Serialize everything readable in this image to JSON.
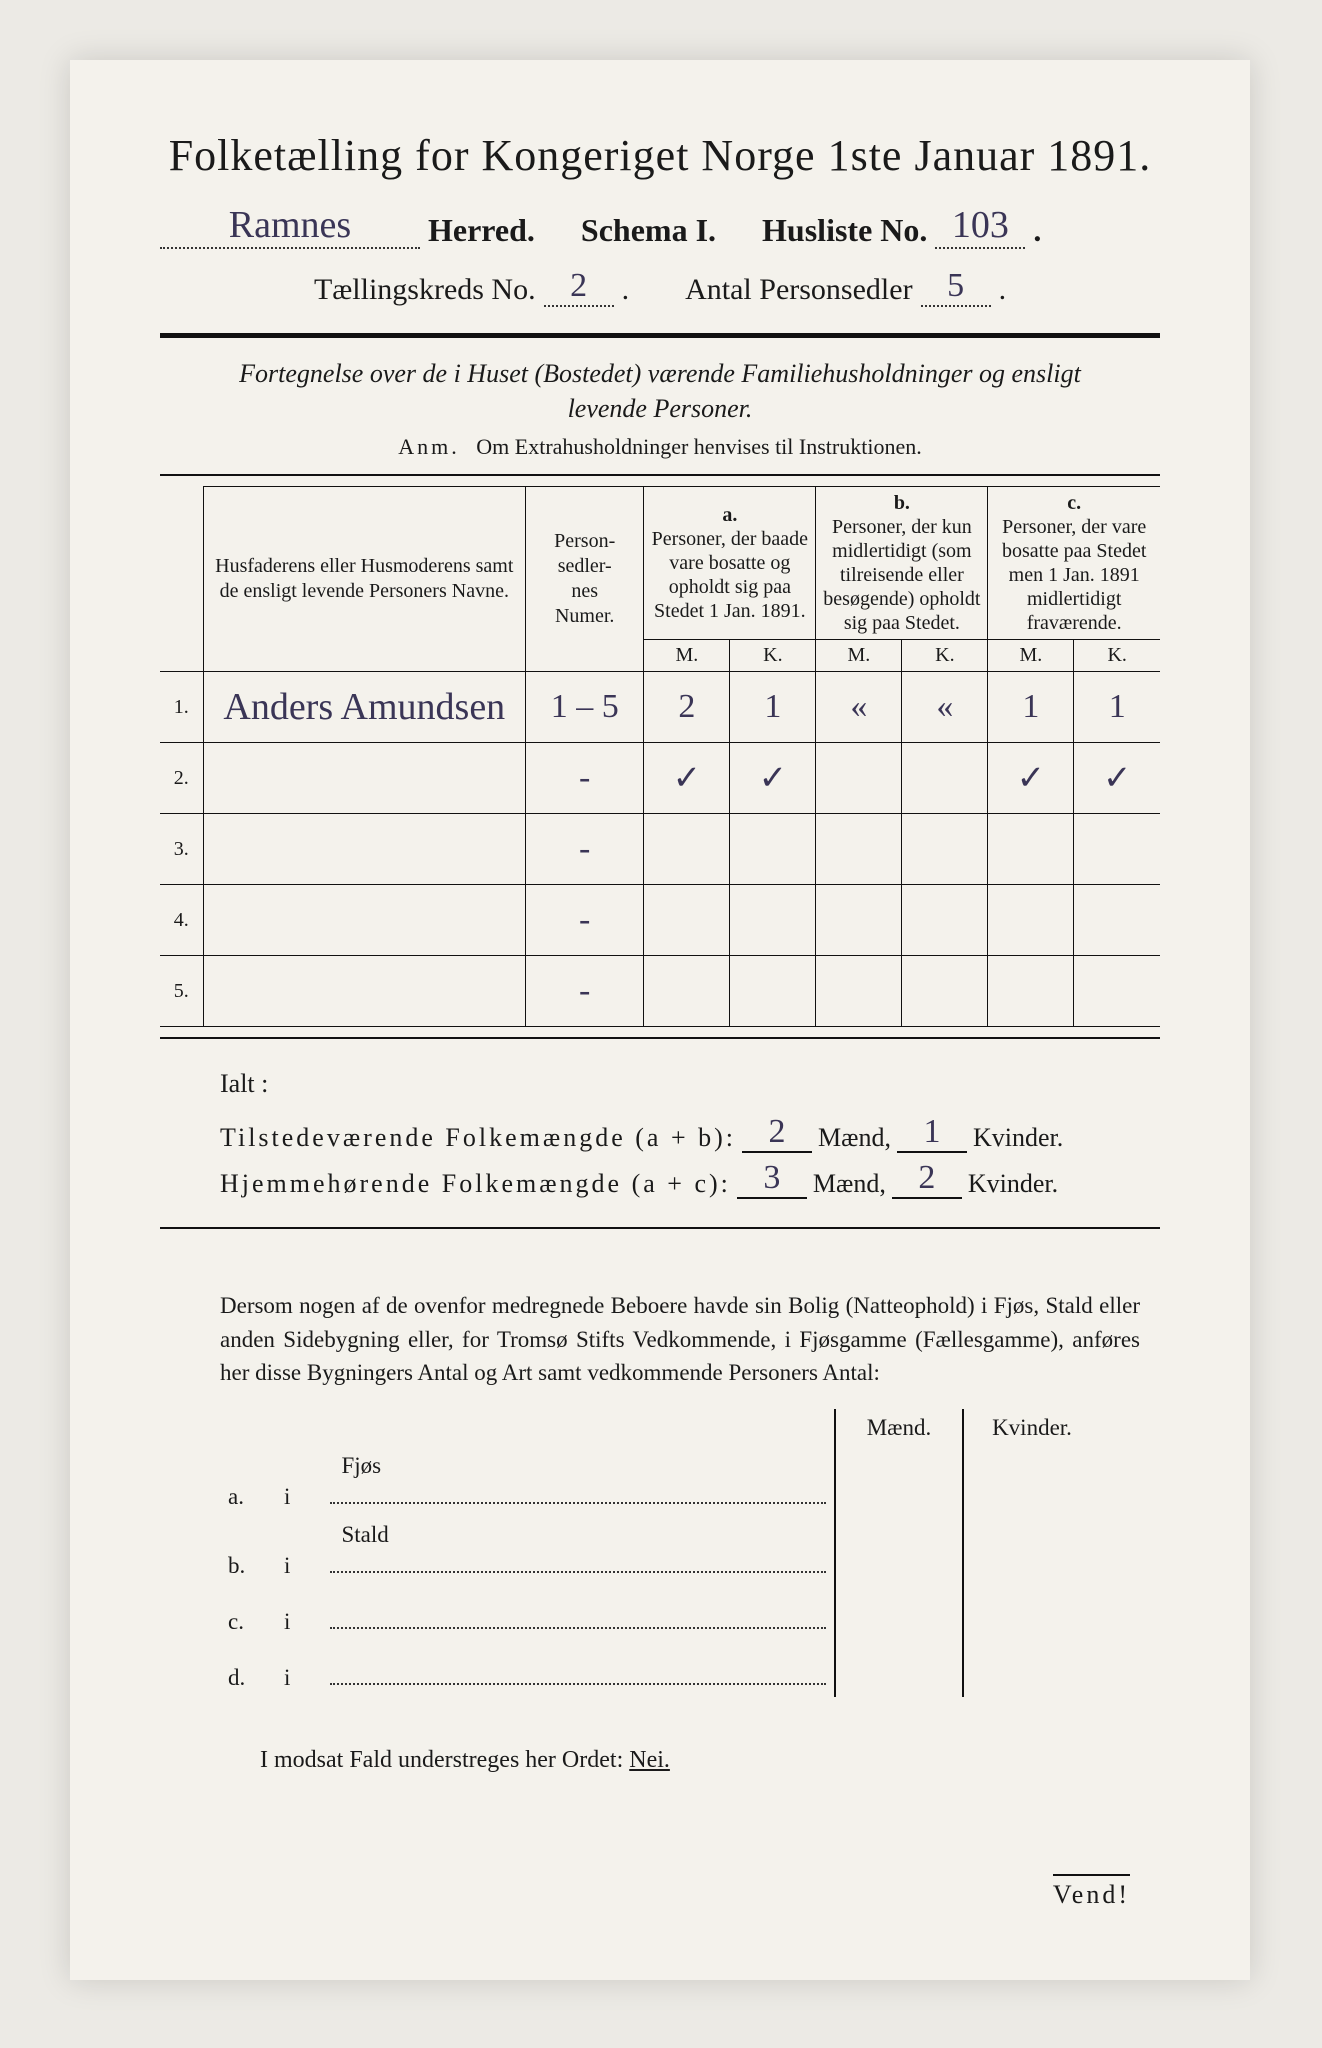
{
  "title": "Folketælling for Kongeriget Norge 1ste Januar 1891.",
  "header": {
    "herred_hand": "Ramnes",
    "herred_label": "Herred.",
    "schema_label": "Schema I.",
    "husliste_label": "Husliste No.",
    "husliste_no_hand": "103",
    "kreds_label": "Tællingskreds No.",
    "kreds_no_hand": "2",
    "personsedler_label": "Antal Personsedler",
    "personsedler_hand": "5"
  },
  "fortegnelse": "Fortegnelse over de i Huset (Bostedet) værende Familiehusholdninger og ensligt levende Personer.",
  "anm_label": "Anm.",
  "anm_text": "Om Extrahusholdninger henvises til Instruktionen.",
  "table": {
    "col_name": "Husfaderens eller Husmoderens samt de ensligt levende Personers Navne.",
    "col_numer": "Person-\nsedler-\nnes\nNumer.",
    "col_a_head": "a.",
    "col_a_text": "Personer, der baade vare bosatte og opholdt sig paa Stedet 1 Jan. 1891.",
    "col_b_head": "b.",
    "col_b_text": "Personer, der kun midlertidigt (som tilreisende eller besøgende) opholdt sig paa Stedet.",
    "col_c_head": "c.",
    "col_c_text": "Personer, der vare bosatte paa Stedet men 1 Jan. 1891 midlertidigt fraværende.",
    "M": "M.",
    "K": "K.",
    "rows": [
      {
        "n": "1.",
        "name_hand": "Anders Amundsen",
        "numer": "1 – 5",
        "aM": "2",
        "aK": "1",
        "bM": "«",
        "bK": "«",
        "cM": "1",
        "cK": "1"
      },
      {
        "n": "2.",
        "name_hand": "",
        "numer": "-",
        "aM": "✓",
        "aK": "✓",
        "bM": "",
        "bK": "",
        "cM": "✓",
        "cK": "✓"
      },
      {
        "n": "3.",
        "name_hand": "",
        "numer": "-",
        "aM": "",
        "aK": "",
        "bM": "",
        "bK": "",
        "cM": "",
        "cK": ""
      },
      {
        "n": "4.",
        "name_hand": "",
        "numer": "-",
        "aM": "",
        "aK": "",
        "bM": "",
        "bK": "",
        "cM": "",
        "cK": ""
      },
      {
        "n": "5.",
        "name_hand": "",
        "numer": "-",
        "aM": "",
        "aK": "",
        "bM": "",
        "bK": "",
        "cM": "",
        "cK": ""
      }
    ]
  },
  "totals": {
    "ialt": "Ialt :",
    "tilstede_label": "Tilstedeværende Folkemængde (a + b):",
    "hjemme_label": "Hjemmehørende Folkemængde (a + c):",
    "maend": "Mænd,",
    "kvinder": "Kvinder.",
    "tilstede_M": "2",
    "tilstede_K": "1",
    "hjemme_M": "3",
    "hjemme_K": "2"
  },
  "para": "Dersom nogen af de ovenfor medregnede Beboere havde sin Bolig (Natteophold) i Fjøs, Stald eller anden Sidebygning eller, for Tromsø Stifts Vedkommende, i Fjøsgamme (Fællesgamme), anføres her disse Bygningers Antal og Art samt vedkommende Personers Antal:",
  "abcd": {
    "maend": "Mænd.",
    "kvinder": "Kvinder.",
    "rows": [
      {
        "k": "a.",
        "i": "i",
        "label": "Fjøs"
      },
      {
        "k": "b.",
        "i": "i",
        "label": "Stald"
      },
      {
        "k": "c.",
        "i": "i",
        "label": ""
      },
      {
        "k": "d.",
        "i": "i",
        "label": ""
      }
    ]
  },
  "modsat": "I modsat Fald understreges her Ordet:",
  "nei": "Nei.",
  "vend": "Vend!",
  "colors": {
    "page_bg": "#f4f2ec",
    "outer_bg": "#eceae5",
    "ink": "#1a1a1a",
    "hand_ink": "#3a3556"
  }
}
